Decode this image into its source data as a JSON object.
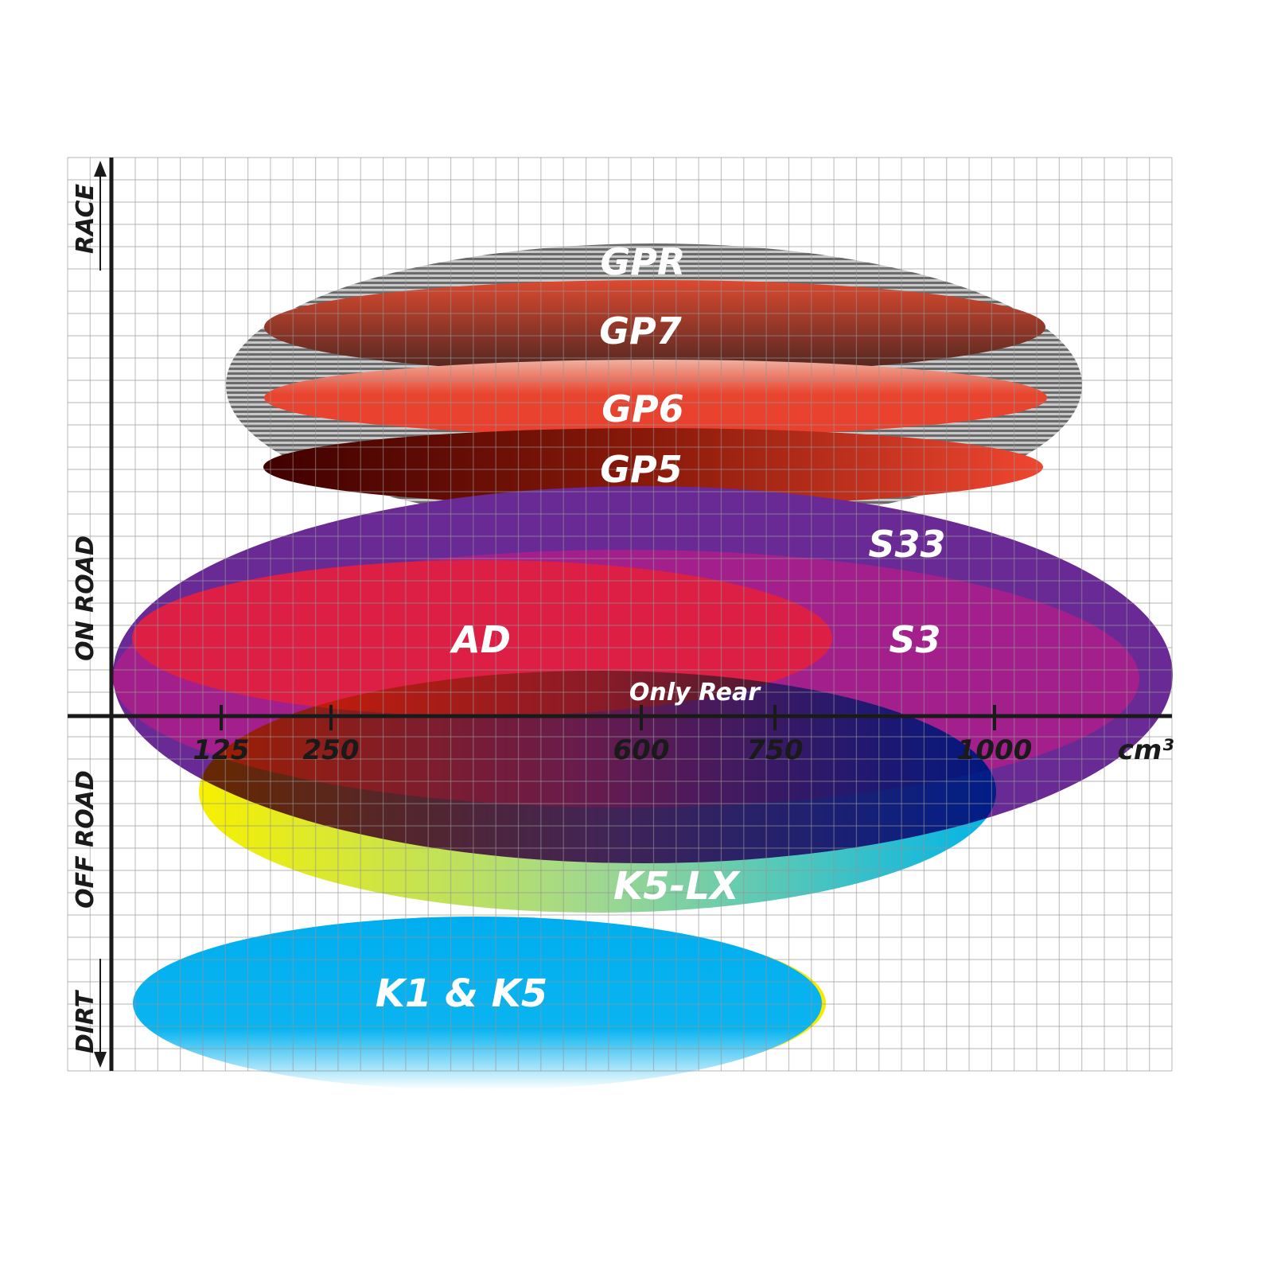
{
  "chart_data": {
    "type": "diagram",
    "x_unit_label": "cm³",
    "x_ticks": [
      "125",
      "250",
      "600",
      "750",
      "1000"
    ],
    "y_categories": [
      "RACE",
      "ON ROAD",
      "OFF ROAD",
      "DIRT"
    ],
    "grid": true,
    "ranges": [
      {
        "name": "GPR",
        "color": "#9a9a9a"
      },
      {
        "name": "GP7",
        "color": "#b9452f"
      },
      {
        "name": "GP6",
        "color": "#e8432f"
      },
      {
        "name": "GP5",
        "color": "#8a1a0a"
      },
      {
        "name": "S33",
        "color": "#6a2a95"
      },
      {
        "name": "S3",
        "color": "#a3208c"
      },
      {
        "name": "AD",
        "color": "#dd1f45"
      },
      {
        "name": "K5-LX",
        "color": "#f2ef1a"
      },
      {
        "name": "K1 & K5",
        "color": "#00b0ef"
      }
    ],
    "annotations": [
      "Only Rear"
    ]
  }
}
